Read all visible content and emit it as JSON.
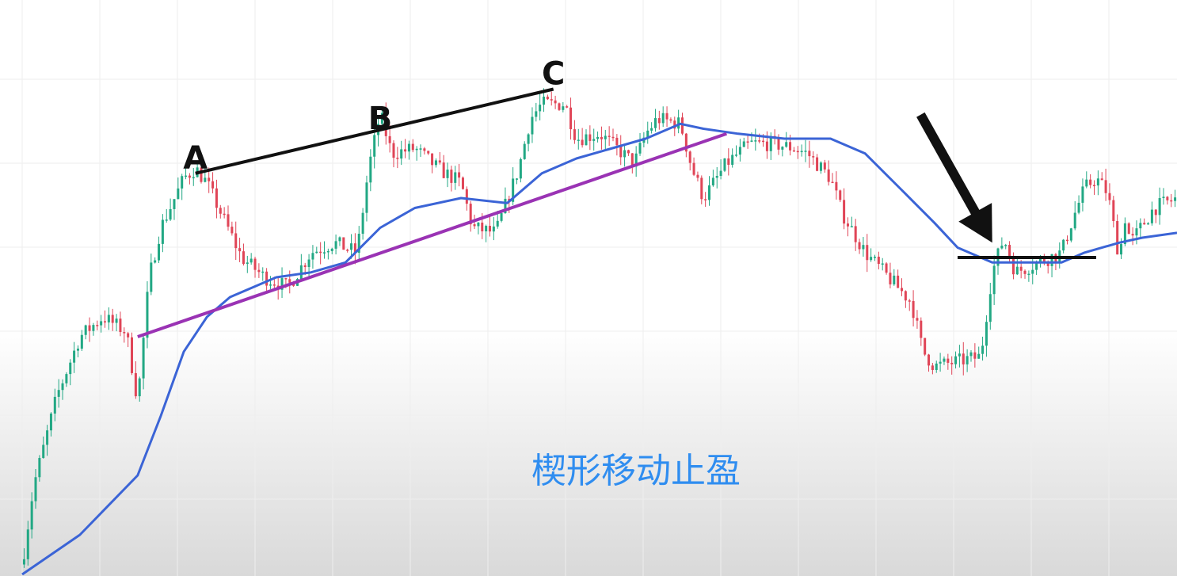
{
  "caption": "楔形移动止盈",
  "colors": {
    "bullish": "#22a884",
    "bearish": "#e04557",
    "moving_average": "#3b64d6",
    "trendline": "#9a33b4",
    "resistance": "#111111",
    "arrow": "#111111",
    "caption": "#2f8df0",
    "grid": "#eeeeee"
  },
  "chart_data": {
    "type": "candlestick",
    "title": "",
    "xlabel": "",
    "ylabel": "",
    "grid": true,
    "x_range": [
      0,
      100
    ],
    "y_range": [
      0,
      100
    ],
    "candle_count": 300,
    "price_path": [
      [
        0,
        2
      ],
      [
        1,
        18
      ],
      [
        3,
        36
      ],
      [
        5,
        48
      ],
      [
        7,
        52
      ],
      [
        9,
        49
      ],
      [
        10,
        35
      ],
      [
        11,
        60
      ],
      [
        12,
        70
      ],
      [
        14,
        80
      ],
      [
        15,
        82
      ],
      [
        16,
        79
      ],
      [
        17,
        74
      ],
      [
        19,
        64
      ],
      [
        21,
        60
      ],
      [
        23,
        58
      ],
      [
        25,
        65
      ],
      [
        27,
        67
      ],
      [
        29,
        65
      ],
      [
        30,
        82
      ],
      [
        31,
        93
      ],
      [
        32,
        85
      ],
      [
        34,
        86
      ],
      [
        36,
        82
      ],
      [
        38,
        79
      ],
      [
        39,
        70
      ],
      [
        41,
        69
      ],
      [
        43,
        82
      ],
      [
        44,
        92
      ],
      [
        45,
        95
      ],
      [
        47,
        95
      ],
      [
        48,
        88
      ],
      [
        50,
        89
      ],
      [
        52,
        85
      ],
      [
        53,
        83
      ],
      [
        54,
        89
      ],
      [
        55,
        92
      ],
      [
        57,
        91
      ],
      [
        58,
        82
      ],
      [
        59,
        76
      ],
      [
        61,
        83
      ],
      [
        62,
        85
      ],
      [
        63,
        87
      ],
      [
        65,
        87
      ],
      [
        67,
        86
      ],
      [
        68,
        85
      ],
      [
        70,
        80
      ],
      [
        71,
        73
      ],
      [
        73,
        65
      ],
      [
        75,
        60
      ],
      [
        77,
        55
      ],
      [
        78,
        45
      ],
      [
        79,
        42
      ],
      [
        81,
        43
      ],
      [
        83,
        44
      ],
      [
        84,
        61
      ],
      [
        85,
        68
      ],
      [
        86,
        61
      ],
      [
        88,
        63
      ],
      [
        90,
        65
      ],
      [
        91,
        72
      ],
      [
        92,
        78
      ],
      [
        93,
        80
      ],
      [
        94,
        77
      ],
      [
        95,
        64
      ],
      [
        95.5,
        72
      ],
      [
        96,
        67
      ],
      [
        98,
        74
      ],
      [
        100,
        76
      ]
    ],
    "moving_average": [
      [
        0,
        0
      ],
      [
        5,
        8
      ],
      [
        10,
        20
      ],
      [
        12,
        32
      ],
      [
        14,
        45
      ],
      [
        16,
        52
      ],
      [
        18,
        56
      ],
      [
        20,
        58
      ],
      [
        22,
        60
      ],
      [
        25,
        61
      ],
      [
        28,
        63
      ],
      [
        31,
        70
      ],
      [
        34,
        74
      ],
      [
        38,
        76
      ],
      [
        42,
        75
      ],
      [
        45,
        81
      ],
      [
        48,
        84
      ],
      [
        51,
        86
      ],
      [
        54,
        88
      ],
      [
        57,
        91
      ],
      [
        59,
        90
      ],
      [
        62,
        89
      ],
      [
        66,
        88
      ],
      [
        70,
        88
      ],
      [
        73,
        85
      ],
      [
        76,
        78
      ],
      [
        79,
        71
      ],
      [
        81,
        66
      ],
      [
        84,
        63
      ],
      [
        87,
        63
      ],
      [
        90,
        63
      ],
      [
        92,
        65
      ],
      [
        95,
        67
      ],
      [
        97,
        68
      ],
      [
        100,
        69
      ]
    ],
    "swing_points": [
      {
        "label": "A",
        "x": 15,
        "y": 81
      },
      {
        "label": "B",
        "x": 31,
        "y": 89
      },
      {
        "label": "C",
        "x": 46,
        "y": 98
      }
    ],
    "trendline": {
      "from": [
        10,
        48
      ],
      "to": [
        61,
        89
      ]
    },
    "resistance_line": {
      "from": [
        81,
        64
      ],
      "to": [
        93,
        64
      ]
    },
    "arrow": {
      "from": [
        78,
        92
      ],
      "to": [
        84,
        67
      ]
    }
  }
}
